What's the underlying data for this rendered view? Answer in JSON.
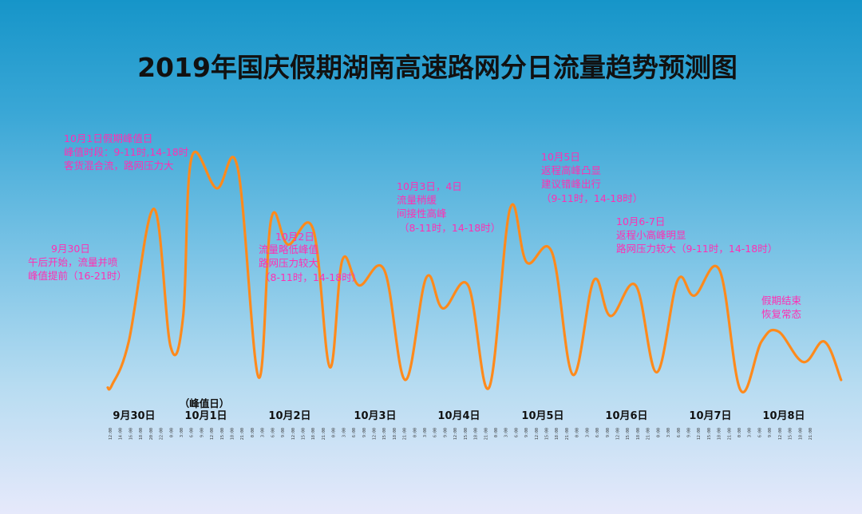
{
  "colors": {
    "line": "#ff8a1c",
    "annotation": "#ff2fb3",
    "title": "#111111"
  },
  "chart_data": {
    "type": "line",
    "title": "2019年国庆假期湖南高速路网分日流量趋势预测图",
    "xlabel": "",
    "ylabel": "",
    "grid": false,
    "legend": "none",
    "y_axis_shown": false,
    "categories": [
      "9月30日",
      "10月1日",
      "10月2日",
      "10月3日",
      "10月4日",
      "10月5日",
      "10月6日",
      "10月7日",
      "10月8日"
    ],
    "peak_day_note": "（峰值日）",
    "x_tick_labels": [
      "12:00",
      "14:00",
      "16:00",
      "18:00",
      "20:00",
      "22:00",
      "0:00",
      "3:00",
      "6:00",
      "9:00",
      "12:00",
      "15:00",
      "18:00",
      "21:00",
      "0:00",
      "3:00",
      "6:00",
      "9:00",
      "12:00",
      "15:00",
      "18:00",
      "21:00",
      "0:00",
      "3:00",
      "6:00",
      "9:00",
      "12:00",
      "15:00",
      "18:00",
      "21:00",
      "0:00",
      "3:00",
      "6:00",
      "9:00",
      "12:00",
      "15:00",
      "18:00",
      "21:00",
      "0:00",
      "3:00",
      "6:00",
      "9:00",
      "12:00",
      "15:00",
      "18:00",
      "21:00",
      "0:00",
      "3:00",
      "6:00",
      "9:00",
      "12:00",
      "15:00",
      "18:00",
      "21:00",
      "0:00",
      "3:00",
      "6:00",
      "9:00",
      "12:00",
      "15:00",
      "18:00",
      "21:00",
      "0:00",
      "3:00",
      "6:00",
      "9:00",
      "12:00",
      "15:00",
      "18:00",
      "21:00"
    ],
    "series": [
      {
        "x": [
          0,
          0.05,
          0.25,
          0.55,
          0.75,
          0.9,
          1.0,
          1.3,
          1.55,
          1.8,
          1.95,
          2.15,
          2.45,
          2.65,
          2.8,
          3.0,
          3.3,
          3.55,
          3.8,
          4.0,
          4.3,
          4.55,
          4.8,
          5.0,
          5.3,
          5.55,
          5.8,
          6.0,
          6.3,
          6.55,
          6.8,
          7.0,
          7.3,
          7.55,
          7.8,
          8.0,
          8.3,
          8.55,
          8.75
        ],
        "y": [
          2,
          3,
          20,
          72,
          18,
          30,
          92,
          80,
          88,
          6,
          68,
          58,
          64,
          10,
          52,
          42,
          48,
          5,
          45,
          33,
          42,
          2,
          72,
          51,
          55,
          7,
          44,
          30,
          42,
          8,
          44,
          38,
          48,
          1,
          20,
          24,
          12,
          20,
          5
        ]
      }
    ],
    "annotations": [
      {
        "lines": [
          "9月30日",
          "午后开始，流量并喷",
          "峰值提前（16-21时）"
        ]
      },
      {
        "lines": [
          "10月1日假期峰值日",
          "峰值时段：9-11时,14-18时",
          "客货混合流，路网压力大"
        ]
      },
      {
        "lines": [
          "10月2日",
          "流量略低峰值",
          "路网压力较大",
          "（8-11时，14-18时）"
        ]
      },
      {
        "lines": [
          "10月3日，4日",
          "流量稍缓",
          "间接性高峰",
          "（8-11时，14-18时）"
        ]
      },
      {
        "lines": [
          "10月5日",
          "返程高峰凸显",
          "建议错峰出行",
          "（9-11时，14-18时）"
        ]
      },
      {
        "lines": [
          "10月6-7日",
          "返程小高峰明显",
          "路网压力较大（9-11时，14-18时）"
        ]
      },
      {
        "lines": [
          "假期结束",
          "恢复常态"
        ]
      }
    ]
  }
}
